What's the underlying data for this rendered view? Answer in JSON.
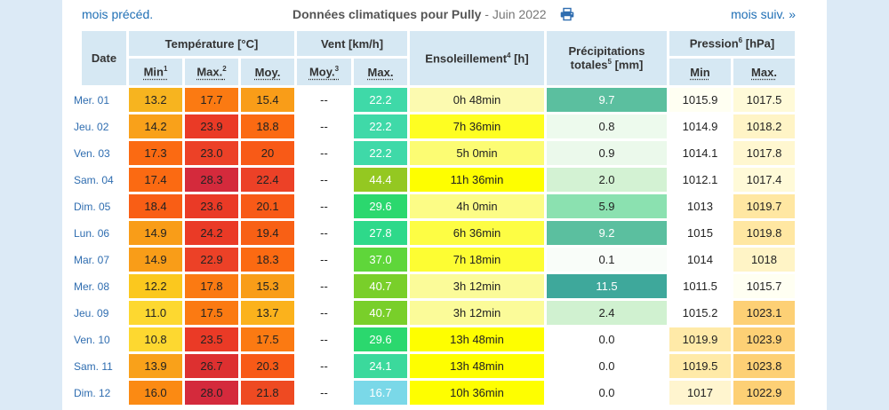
{
  "nav": {
    "prev_label": "mois précéd.",
    "next_label": "mois suiv. »",
    "title_main": "Données climatiques pour Pully",
    "title_sep": " - ",
    "title_period": "Juin 2022"
  },
  "headers": {
    "date": "Date",
    "temperature": "Température [°C]",
    "wind": "Vent [km/h]",
    "sunshine": "Ensoleillement",
    "sunshine_note": "4",
    "sunshine_unit": " [h]",
    "precip_line1": "Précipitations",
    "precip_line2_a": "totales",
    "precip_note": "5",
    "precip_line2_b": " [mm]",
    "pressure": "Pression",
    "pressure_note": "6",
    "pressure_unit": " [hPa]",
    "t_min": "Min",
    "t_min_note": "1",
    "t_max": "Max.",
    "t_max_note": "2",
    "t_avg": "Moy.",
    "w_avg": "Moy.",
    "w_avg_note": "3",
    "w_max": "Max.",
    "p_min": "Min",
    "p_max": "Max."
  },
  "rows": [
    {
      "date": "Mer. 01",
      "tmin": "13.2",
      "tmax": "17.7",
      "tavg": "15.4",
      "wavg": "--",
      "wmax": "22.2",
      "sun": "0h 48min",
      "precip": "9.7",
      "pmin": "1015.9",
      "pmax": "1017.5",
      "c": {
        "tmin": "#f7b41f",
        "tmax": "#fb7a12",
        "tavg": "#f99d18",
        "wmax": "#3fd9a8",
        "sun": "#fcfab0",
        "precip": "#5bbf9f",
        "pmin": "#fffff2",
        "pmax": "#fffad8"
      }
    },
    {
      "date": "Jeu. 02",
      "tmin": "14.2",
      "tmax": "23.9",
      "tavg": "18.8",
      "wavg": "--",
      "wmax": "22.2",
      "sun": "7h 36min",
      "precip": "0.8",
      "pmin": "1014.9",
      "pmax": "1018.2",
      "c": {
        "tmin": "#f9a11a",
        "tmax": "#ea3a26",
        "tavg": "#fb6a12",
        "wmax": "#3fd9a8",
        "sun": "#fefe22",
        "precip": "#edfaed",
        "pmin": "#ffffff",
        "pmax": "#fff4c6"
      }
    },
    {
      "date": "Ven. 03",
      "tmin": "17.3",
      "tmax": "23.0",
      "tavg": "20",
      "wavg": "--",
      "wmax": "22.2",
      "sun": "5h 0min",
      "precip": "0.9",
      "pmin": "1014.1",
      "pmax": "1017.8",
      "c": {
        "tmin": "#fb6a12",
        "tmax": "#ec4127",
        "tavg": "#f85a17",
        "wmax": "#3fd9a8",
        "sun": "#fcfc73",
        "precip": "#ebf9eb",
        "pmin": "#ffffff",
        "pmax": "#fff7d0"
      }
    },
    {
      "date": "Sam. 04",
      "tmin": "17.4",
      "tmax": "28.3",
      "tavg": "22.4",
      "wavg": "--",
      "wmax": "44.4",
      "sun": "11h 36min",
      "precip": "2.0",
      "pmin": "1012.1",
      "pmax": "1017.4",
      "c": {
        "tmin": "#fb6a12",
        "tmax": "#d42a3c",
        "tavg": "#ec4127",
        "wmax": "#94c821",
        "sun": "#fefe00",
        "precip": "#d3f2d3",
        "pmin": "#ffffff",
        "pmax": "#fffad8"
      }
    },
    {
      "date": "Dim. 05",
      "tmin": "18.4",
      "tmax": "23.6",
      "tavg": "20.1",
      "wavg": "--",
      "wmax": "29.6",
      "sun": "4h 0min",
      "precip": "5.9",
      "pmin": "1013",
      "pmax": "1019.7",
      "c": {
        "tmin": "#f95e15",
        "tmax": "#ea3a26",
        "tavg": "#f85a17",
        "wmax": "#2bd86e",
        "sun": "#fcfc86",
        "precip": "#8be1b0",
        "pmin": "#ffffff",
        "pmax": "#ffe7a2"
      }
    },
    {
      "date": "Lun. 06",
      "tmin": "14.9",
      "tmax": "24.2",
      "tavg": "19.4",
      "wavg": "--",
      "wmax": "27.8",
      "sun": "6h 36min",
      "precip": "9.2",
      "pmin": "1015",
      "pmax": "1019.8",
      "c": {
        "tmin": "#f99d18",
        "tmax": "#ea3a26",
        "tavg": "#f86015",
        "wmax": "#2ed98a",
        "sun": "#fdfd44",
        "precip": "#5bbf9f",
        "pmin": "#ffffff",
        "pmax": "#ffe7a2"
      }
    },
    {
      "date": "Mar. 07",
      "tmin": "14.9",
      "tmax": "22.9",
      "tavg": "18.3",
      "wavg": "--",
      "wmax": "37.0",
      "sun": "7h 18min",
      "precip": "0.1",
      "pmin": "1014",
      "pmax": "1018",
      "c": {
        "tmin": "#f99d18",
        "tmax": "#ec4127",
        "tavg": "#fb6a12",
        "wmax": "#5fd63a",
        "sun": "#fdfd33",
        "precip": "#f9fdf9",
        "pmin": "#ffffff",
        "pmax": "#fff4c6"
      }
    },
    {
      "date": "Mer. 08",
      "tmin": "12.2",
      "tmax": "17.8",
      "tavg": "15.3",
      "wavg": "--",
      "wmax": "40.7",
      "sun": "3h 12min",
      "precip": "11.5",
      "pmin": "1011.5",
      "pmax": "1015.7",
      "c": {
        "tmin": "#fbc81e",
        "tmax": "#fb7a12",
        "tavg": "#f99d18",
        "wmax": "#79cf2a",
        "sun": "#fbfb99",
        "precip": "#3ea89b",
        "pmin": "#ffffff",
        "pmax": "#fffff2"
      }
    },
    {
      "date": "Jeu. 09",
      "tmin": "11.0",
      "tmax": "17.5",
      "tavg": "13.7",
      "wavg": "--",
      "wmax": "40.7",
      "sun": "3h 12min",
      "precip": "2.4",
      "pmin": "1015.2",
      "pmax": "1023.1",
      "c": {
        "tmin": "#fdd830",
        "tmax": "#fb7a12",
        "tavg": "#fbb21c",
        "wmax": "#79cf2a",
        "sun": "#fbfb99",
        "precip": "#d0f1d0",
        "pmin": "#ffffff",
        "pmax": "#fdd075"
      }
    },
    {
      "date": "Ven. 10",
      "tmin": "10.8",
      "tmax": "23.5",
      "tavg": "17.5",
      "wavg": "--",
      "wmax": "29.6",
      "sun": "13h 48min",
      "precip": "0.0",
      "pmin": "1019.9",
      "pmax": "1023.9",
      "c": {
        "tmin": "#fdd830",
        "tmax": "#ea3a26",
        "tavg": "#fb7a12",
        "wmax": "#2bd86e",
        "sun": "#fefe00",
        "precip": "#ffffff",
        "pmin": "#ffeaa8",
        "pmax": "#fdd075"
      }
    },
    {
      "date": "Sam. 11",
      "tmin": "13.9",
      "tmax": "26.7",
      "tavg": "20.3",
      "wavg": "--",
      "wmax": "24.1",
      "sun": "13h 48min",
      "precip": "0.0",
      "pmin": "1019.5",
      "pmax": "1023.8",
      "c": {
        "tmin": "#f9a11a",
        "tmax": "#dd3030",
        "tavg": "#f85a17",
        "wmax": "#3bd99c",
        "sun": "#fefe00",
        "precip": "#ffffff",
        "pmin": "#ffeaa8",
        "pmax": "#fdd075"
      }
    },
    {
      "date": "Dim. 12",
      "tmin": "16.0",
      "tmax": "28.0",
      "tavg": "21.8",
      "wavg": "--",
      "wmax": "16.7",
      "sun": "10h 36min",
      "precip": "0.0",
      "pmin": "1017",
      "pmax": "1022.9",
      "c": {
        "tmin": "#fb8a13",
        "tmax": "#d42a3c",
        "tavg": "#ee4a22",
        "wmax": "#7ad8e8",
        "sun": "#fefe00",
        "precip": "#ffffff",
        "pmin": "#fff5cf",
        "pmax": "#fdd075"
      }
    }
  ]
}
